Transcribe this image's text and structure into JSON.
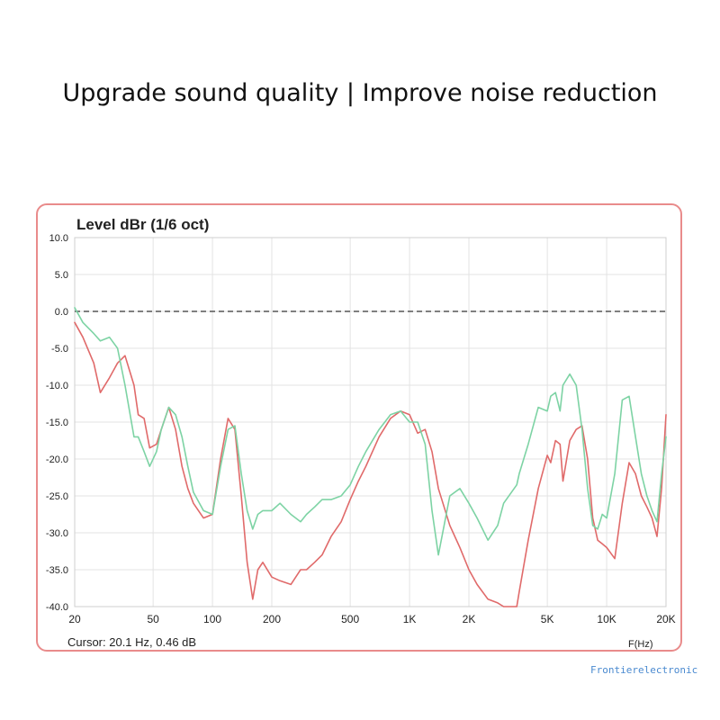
{
  "headline": "Upgrade sound quality | Improve noise reduction",
  "watermark": "Frontierelectronic",
  "colors": {
    "frame": "#e98b8b",
    "series_red": "#e06a6a",
    "series_green": "#7dd3a4",
    "grid": "#e3e3e3",
    "reference": "#555555"
  },
  "chart_data": {
    "type": "line",
    "title": "Level dBr (1/6 oct)",
    "xlabel": "F(Hz)",
    "ylabel": "",
    "xscale": "log",
    "xlim": [
      20,
      20000
    ],
    "ylim": [
      -40,
      10
    ],
    "yticks": [
      10.0,
      5.0,
      0.0,
      -5.0,
      -10.0,
      -15.0,
      -20.0,
      -25.0,
      -30.0,
      -35.0,
      -40.0
    ],
    "ytick_labels": [
      "10.0",
      "5.0",
      "0.0",
      "-5.0",
      "-10.0",
      "-15.0",
      "-20.0",
      "-25.0",
      "-30.0",
      "-35.0",
      "-40.0"
    ],
    "xticks": [
      20,
      50,
      100,
      200,
      500,
      1000,
      2000,
      5000,
      10000,
      20000
    ],
    "xtick_labels": [
      "20",
      "50",
      "100",
      "200",
      "500",
      "1K",
      "2K",
      "5K",
      "10K",
      "20K"
    ],
    "grid": true,
    "reference_line": 0,
    "cursor": "Cursor: 20.1 Hz, 0.46 dB",
    "series": [
      {
        "color": "#e06a6a",
        "x": [
          20,
          22,
          25,
          27,
          30,
          33,
          36,
          40,
          42,
          45,
          48,
          52,
          55,
          60,
          65,
          70,
          75,
          80,
          90,
          100,
          110,
          120,
          130,
          140,
          150,
          160,
          170,
          180,
          200,
          220,
          250,
          280,
          300,
          330,
          360,
          400,
          450,
          500,
          550,
          600,
          700,
          800,
          900,
          1000,
          1100,
          1200,
          1300,
          1400,
          1600,
          1800,
          2000,
          2200,
          2500,
          2800,
          3000,
          3500,
          3600,
          4000,
          4500,
          5000,
          5200,
          5500,
          5800,
          6000,
          6500,
          7000,
          7500,
          8000,
          8500,
          9000,
          9500,
          10000,
          11000,
          12000,
          13000,
          14000,
          15000,
          16000,
          17000,
          18000,
          19000,
          20000
        ],
        "y": [
          -1.5,
          -3.5,
          -7,
          -11,
          -9,
          -7,
          -6,
          -10,
          -14,
          -14.5,
          -18.5,
          -18,
          -16,
          -13,
          -16,
          -21,
          -24,
          -26,
          -28,
          -27.5,
          -20,
          -14.5,
          -16,
          -25,
          -34,
          -39,
          -35,
          -34,
          -36,
          -36.5,
          -37,
          -35,
          -35,
          -34,
          -33,
          -30.5,
          -28.5,
          -25.5,
          -23,
          -21,
          -17,
          -14.5,
          -13.5,
          -14,
          -16.5,
          -16,
          -19,
          -24,
          -29,
          -32,
          -35,
          -37,
          -39,
          -39.5,
          -40,
          -40.5,
          -38,
          -31,
          -24,
          -19.5,
          -20.5,
          -17.5,
          -18,
          -23,
          -17.5,
          -16,
          -15.5,
          -20,
          -28,
          -31,
          -31.5,
          -32,
          -33.5,
          -26,
          -20.5,
          -22,
          -25,
          -26.5,
          -28,
          -30.5,
          -24,
          -14
        ]
      },
      {
        "color": "#7dd3a4",
        "x": [
          20,
          22,
          25,
          27,
          30,
          33,
          36,
          40,
          42,
          45,
          48,
          52,
          55,
          60,
          65,
          70,
          75,
          80,
          90,
          100,
          110,
          120,
          130,
          140,
          150,
          160,
          170,
          180,
          200,
          220,
          250,
          280,
          300,
          330,
          360,
          400,
          450,
          500,
          550,
          600,
          700,
          800,
          900,
          1000,
          1100,
          1200,
          1300,
          1400,
          1600,
          1800,
          2000,
          2200,
          2500,
          2800,
          3000,
          3500,
          3600,
          4000,
          4500,
          5000,
          5200,
          5500,
          5800,
          6000,
          6500,
          7000,
          7500,
          8000,
          8500,
          9000,
          9500,
          10000,
          11000,
          12000,
          13000,
          14000,
          15000,
          16000,
          17000,
          18000,
          19000,
          20000
        ],
        "y": [
          0.5,
          -1.5,
          -3,
          -4,
          -3.5,
          -5,
          -10,
          -17,
          -17,
          -19,
          -21,
          -19,
          -16,
          -13,
          -14,
          -17,
          -21,
          -24.5,
          -27,
          -27.5,
          -21,
          -16,
          -15.5,
          -22,
          -27,
          -29.5,
          -27.5,
          -27,
          -27,
          -26,
          -27.5,
          -28.5,
          -27.5,
          -26.5,
          -25.5,
          -25.5,
          -25,
          -23.5,
          -21,
          -19,
          -16,
          -14,
          -13.5,
          -15,
          -15,
          -18,
          -27,
          -33,
          -25,
          -24,
          -26,
          -28,
          -31,
          -29,
          -26,
          -23.5,
          -22,
          -18,
          -13,
          -13.5,
          -11.5,
          -11,
          -13.5,
          -10,
          -8.5,
          -10,
          -16,
          -24,
          -29,
          -29.5,
          -27.5,
          -28,
          -22,
          -12,
          -11.5,
          -17,
          -22,
          -25,
          -27,
          -28.5,
          -22,
          -17
        ]
      }
    ]
  }
}
